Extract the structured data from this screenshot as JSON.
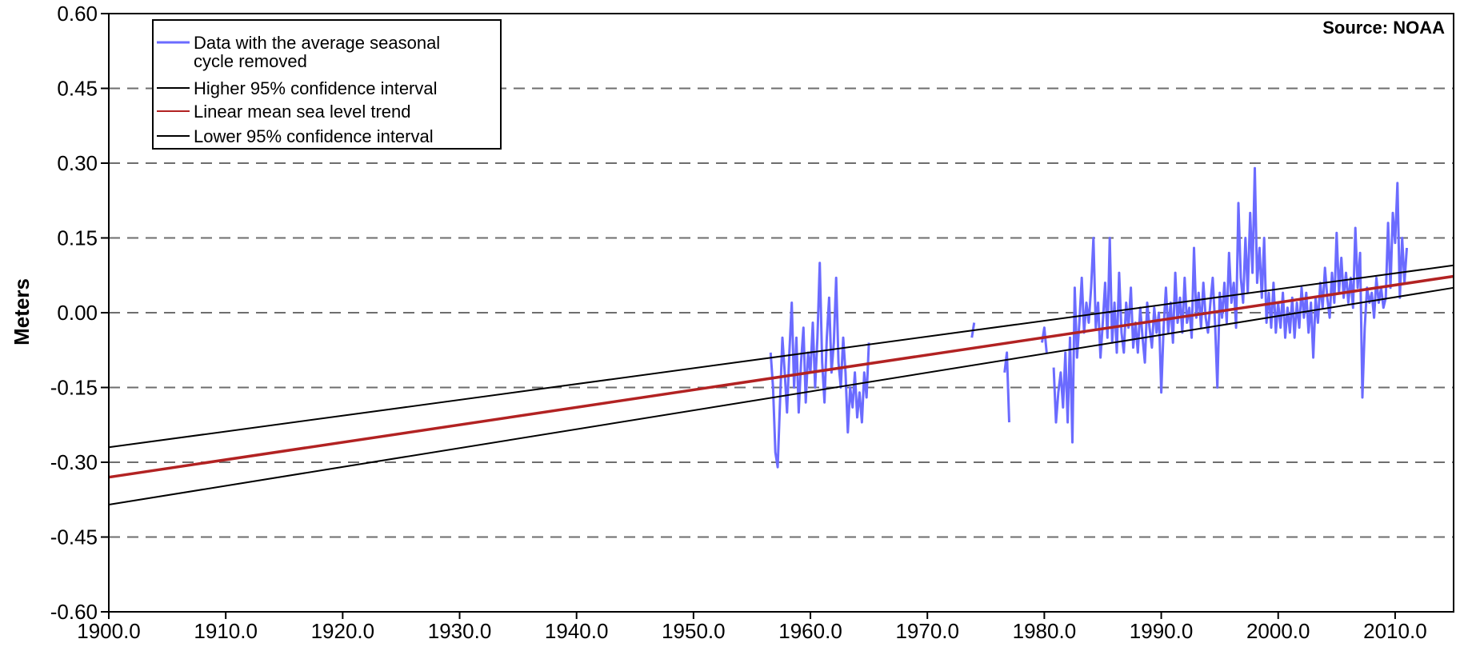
{
  "chart_data": {
    "type": "line",
    "title": "",
    "source_note": "Source: NOAA",
    "ylabel": "Meters",
    "xlabel": "",
    "xlim": [
      1900,
      2015
    ],
    "ylim": [
      -0.6,
      0.6
    ],
    "grid": {
      "y_dashed": true,
      "x": false
    },
    "legend_position": "top-left",
    "x_ticks": [
      "1900.0",
      "1910.0",
      "1920.0",
      "1930.0",
      "1940.0",
      "1950.0",
      "1960.0",
      "1970.0",
      "1980.0",
      "1990.0",
      "2000.0",
      "2010.0"
    ],
    "x_tick_values": [
      1900,
      1910,
      1920,
      1930,
      1940,
      1950,
      1960,
      1970,
      1980,
      1990,
      2000,
      2010
    ],
    "y_ticks": [
      "0.60",
      "0.45",
      "0.30",
      "0.15",
      "0.00",
      "-0.15",
      "-0.30",
      "-0.45",
      "-0.60"
    ],
    "y_tick_values": [
      0.6,
      0.45,
      0.3,
      0.15,
      0,
      -0.15,
      -0.3,
      -0.45,
      -0.6
    ],
    "series": [
      {
        "name": "Data with the average seasonal cycle removed",
        "legend_lines": [
          "Data with the average seasonal",
          "cycle removed"
        ],
        "color": "#6b6bff",
        "type": "line",
        "segments": [
          [
            [
              1956.6,
              -0.08
            ],
            [
              1956.8,
              -0.15
            ],
            [
              1957.0,
              -0.28
            ],
            [
              1957.2,
              -0.31
            ],
            [
              1957.4,
              -0.18
            ],
            [
              1957.6,
              -0.05
            ],
            [
              1957.8,
              -0.12
            ],
            [
              1958.0,
              -0.2
            ],
            [
              1958.2,
              -0.08
            ],
            [
              1958.4,
              0.02
            ],
            [
              1958.6,
              -0.15
            ],
            [
              1958.8,
              -0.05
            ],
            [
              1959.0,
              -0.2
            ],
            [
              1959.2,
              -0.1
            ],
            [
              1959.4,
              -0.03
            ],
            [
              1959.6,
              -0.18
            ],
            [
              1959.8,
              -0.08
            ],
            [
              1960.0,
              -0.12
            ],
            [
              1960.2,
              -0.02
            ],
            [
              1960.4,
              -0.15
            ],
            [
              1960.6,
              -0.05
            ],
            [
              1960.8,
              0.1
            ],
            [
              1961.0,
              -0.1
            ],
            [
              1961.2,
              -0.18
            ],
            [
              1961.4,
              -0.05
            ],
            [
              1961.6,
              0.03
            ],
            [
              1961.8,
              -0.12
            ],
            [
              1962.0,
              -0.06
            ],
            [
              1962.2,
              0.07
            ],
            [
              1962.4,
              -0.1
            ],
            [
              1962.6,
              -0.15
            ],
            [
              1962.8,
              -0.05
            ],
            [
              1963.0,
              -0.12
            ],
            [
              1963.2,
              -0.24
            ],
            [
              1963.4,
              -0.15
            ],
            [
              1963.6,
              -0.19
            ],
            [
              1963.8,
              -0.12
            ],
            [
              1964.0,
              -0.21
            ],
            [
              1964.2,
              -0.16
            ],
            [
              1964.4,
              -0.22
            ],
            [
              1964.6,
              -0.12
            ],
            [
              1964.8,
              -0.17
            ],
            [
              1965.0,
              -0.06
            ]
          ],
          [
            [
              1973.8,
              -0.05
            ],
            [
              1974.0,
              -0.02
            ]
          ],
          [
            [
              1976.6,
              -0.12
            ],
            [
              1976.8,
              -0.08
            ],
            [
              1977.0,
              -0.22
            ]
          ],
          [
            [
              1979.8,
              -0.06
            ],
            [
              1980.0,
              -0.03
            ],
            [
              1980.2,
              -0.08
            ]
          ],
          [
            [
              1980.8,
              -0.11
            ],
            [
              1981.0,
              -0.22
            ],
            [
              1981.2,
              -0.16
            ],
            [
              1981.4,
              -0.12
            ],
            [
              1981.6,
              -0.19
            ],
            [
              1981.8,
              -0.08
            ],
            [
              1982.0,
              -0.22
            ],
            [
              1982.2,
              -0.05
            ],
            [
              1982.4,
              -0.26
            ],
            [
              1982.6,
              0.05
            ],
            [
              1982.8,
              -0.09
            ],
            [
              1983.0,
              -0.02
            ],
            [
              1983.2,
              0.07
            ],
            [
              1983.4,
              -0.04
            ],
            [
              1983.6,
              0.02
            ],
            [
              1983.8,
              -0.02
            ],
            [
              1984.0,
              0.05
            ],
            [
              1984.2,
              0.15
            ],
            [
              1984.4,
              -0.03
            ],
            [
              1984.6,
              0.02
            ],
            [
              1984.8,
              -0.09
            ],
            [
              1985.0,
              -0.02
            ],
            [
              1985.2,
              0.06
            ],
            [
              1985.4,
              -0.05
            ],
            [
              1985.6,
              0.15
            ],
            [
              1985.8,
              -0.06
            ],
            [
              1986.0,
              0.02
            ],
            [
              1986.2,
              -0.08
            ],
            [
              1986.4,
              0.08
            ],
            [
              1986.6,
              -0.04
            ],
            [
              1986.8,
              -0.08
            ],
            [
              1987.0,
              0.02
            ],
            [
              1987.2,
              -0.03
            ],
            [
              1987.4,
              0.05
            ],
            [
              1987.6,
              -0.07
            ],
            [
              1987.8,
              -0.02
            ],
            [
              1988.0,
              -0.08
            ],
            [
              1988.2,
              0.01
            ],
            [
              1988.4,
              -0.05
            ],
            [
              1988.6,
              -0.1
            ],
            [
              1988.8,
              0.02
            ],
            [
              1989.0,
              -0.03
            ],
            [
              1989.2,
              -0.07
            ],
            [
              1989.4,
              0.01
            ],
            [
              1989.6,
              -0.04
            ],
            [
              1989.8,
              0.0
            ],
            [
              1990.0,
              -0.16
            ],
            [
              1990.2,
              -0.03
            ],
            [
              1990.4,
              0.05
            ],
            [
              1990.6,
              -0.04
            ],
            [
              1990.8,
              0.02
            ],
            [
              1991.0,
              -0.06
            ],
            [
              1991.2,
              0.08
            ],
            [
              1991.4,
              -0.02
            ],
            [
              1991.6,
              0.03
            ],
            [
              1991.8,
              -0.04
            ],
            [
              1992.0,
              0.07
            ],
            [
              1992.2,
              -0.02
            ],
            [
              1992.4,
              0.01
            ],
            [
              1992.6,
              -0.05
            ],
            [
              1992.8,
              0.13
            ],
            [
              1993.0,
              -0.01
            ],
            [
              1993.2,
              0.04
            ],
            [
              1993.4,
              -0.03
            ],
            [
              1993.6,
              0.06
            ],
            [
              1993.8,
              -0.01
            ],
            [
              1994.0,
              -0.04
            ],
            [
              1994.2,
              0.02
            ],
            [
              1994.4,
              0.07
            ],
            [
              1994.6,
              -0.02
            ],
            [
              1994.8,
              -0.15
            ],
            [
              1995.0,
              0.04
            ],
            [
              1995.2,
              -0.01
            ],
            [
              1995.4,
              0.06
            ],
            [
              1995.6,
              -0.02
            ],
            [
              1995.8,
              0.12
            ],
            [
              1996.0,
              0.02
            ],
            [
              1996.2,
              0.06
            ],
            [
              1996.4,
              -0.03
            ],
            [
              1996.6,
              0.22
            ],
            [
              1996.8,
              0.07
            ],
            [
              1997.0,
              0.02
            ],
            [
              1997.2,
              0.15
            ],
            [
              1997.4,
              0.04
            ],
            [
              1997.6,
              0.2
            ],
            [
              1997.8,
              0.08
            ],
            [
              1998.0,
              0.29
            ],
            [
              1998.2,
              0.06
            ],
            [
              1998.4,
              0.13
            ],
            [
              1998.6,
              0.03
            ],
            [
              1998.8,
              0.15
            ],
            [
              1999.0,
              -0.02
            ],
            [
              1999.2,
              0.04
            ],
            [
              1999.4,
              -0.03
            ],
            [
              1999.6,
              0.06
            ],
            [
              1999.8,
              -0.04
            ],
            [
              2000.0,
              0.02
            ],
            [
              2000.2,
              -0.03
            ],
            [
              2000.4,
              0.04
            ],
            [
              2000.6,
              -0.05
            ],
            [
              2000.8,
              0.01
            ],
            [
              2001.0,
              -0.04
            ],
            [
              2001.2,
              0.03
            ],
            [
              2001.4,
              -0.05
            ],
            [
              2001.6,
              0.02
            ],
            [
              2001.8,
              -0.03
            ],
            [
              2002.0,
              0.05
            ],
            [
              2002.2,
              -0.01
            ],
            [
              2002.4,
              0.04
            ],
            [
              2002.6,
              -0.04
            ],
            [
              2002.8,
              0.02
            ],
            [
              2003.0,
              -0.09
            ],
            [
              2003.2,
              0.03
            ],
            [
              2003.4,
              -0.02
            ],
            [
              2003.6,
              0.06
            ],
            [
              2003.8,
              0.01
            ],
            [
              2004.0,
              0.09
            ],
            [
              2004.2,
              0.03
            ],
            [
              2004.4,
              -0.01
            ],
            [
              2004.6,
              0.08
            ],
            [
              2004.8,
              0.02
            ],
            [
              2005.0,
              0.16
            ],
            [
              2005.2,
              0.04
            ],
            [
              2005.4,
              0.11
            ],
            [
              2005.6,
              0.03
            ],
            [
              2005.8,
              0.08
            ],
            [
              2006.0,
              0.02
            ],
            [
              2006.2,
              0.07
            ],
            [
              2006.4,
              0.01
            ],
            [
              2006.6,
              0.17
            ],
            [
              2006.8,
              0.05
            ],
            [
              2007.0,
              0.12
            ],
            [
              2007.2,
              -0.17
            ],
            [
              2007.4,
              -0.03
            ],
            [
              2007.6,
              0.05
            ],
            [
              2007.8,
              0.02
            ],
            [
              2008.0,
              0.04
            ],
            [
              2008.2,
              -0.01
            ],
            [
              2008.4,
              0.07
            ],
            [
              2008.6,
              0.02
            ],
            [
              2008.8,
              0.05
            ],
            [
              2009.0,
              0.01
            ],
            [
              2009.2,
              0.03
            ],
            [
              2009.4,
              0.18
            ],
            [
              2009.6,
              0.05
            ],
            [
              2009.8,
              0.2
            ],
            [
              2010.0,
              0.14
            ],
            [
              2010.2,
              0.26
            ],
            [
              2010.4,
              0.03
            ],
            [
              2010.6,
              0.15
            ],
            [
              2010.8,
              0.06
            ],
            [
              2011.0,
              0.13
            ]
          ]
        ]
      },
      {
        "name": "Higher 95% confidence interval",
        "legend_lines": [
          "Higher 95% confidence interval"
        ],
        "color": "#000000",
        "type": "line",
        "points": [
          [
            1900,
            -0.27
          ],
          [
            2015,
            0.095
          ]
        ]
      },
      {
        "name": "Linear mean sea level trend",
        "legend_lines": [
          "Linear mean sea level trend"
        ],
        "color": "#b22222",
        "type": "line",
        "points": [
          [
            1900,
            -0.33
          ],
          [
            2015,
            0.073
          ]
        ]
      },
      {
        "name": "Lower 95% confidence interval",
        "legend_lines": [
          "Lower 95% confidence interval"
        ],
        "color": "#000000",
        "type": "line",
        "points": [
          [
            1900,
            -0.385
          ],
          [
            2015,
            0.05
          ]
        ]
      }
    ]
  }
}
